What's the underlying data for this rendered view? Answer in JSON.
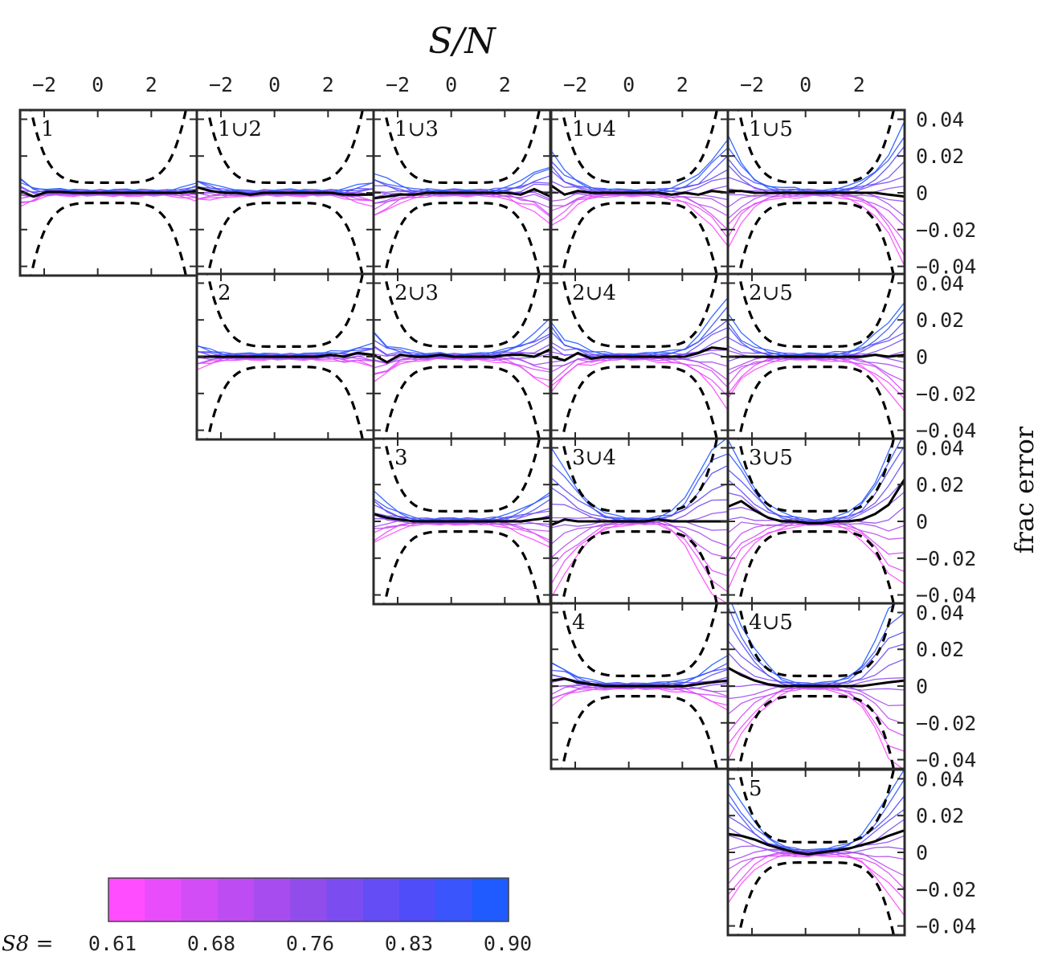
{
  "figure": {
    "x_axis_title": "S/N",
    "y_axis_title": "frac error",
    "colorbar_prefix": "S8 =",
    "colorbar_tick_labels": [
      "0.61",
      "0.68",
      "0.76",
      "0.83",
      "0.90"
    ],
    "colorbar_colors": [
      "#ff4dff",
      "#e94dfb",
      "#d34df7",
      "#bd4df3",
      "#a74def",
      "#914deb",
      "#7b4df1",
      "#654df5",
      "#4f4df9",
      "#3955fb",
      "#1f5bff"
    ]
  },
  "chart_data": {
    "type": "line",
    "layout": "upper-triangular grid of 15 panels, 5 rows by 5 columns",
    "x_ticks": [
      -2,
      0,
      2
    ],
    "x_tick_labels": [
      "−2",
      "0",
      "2"
    ],
    "xlim": [
      -2.9,
      3.7
    ],
    "y_ticks": [
      0.04,
      0.02,
      0,
      -0.02,
      -0.04
    ],
    "y_tick_labels": [
      "0.04",
      "0.02",
      "0",
      "−0.02",
      "−0.04"
    ],
    "ylim": [
      -0.045,
      0.045
    ],
    "x_sample": [
      -2.9,
      -2.4,
      -1.9,
      -1.4,
      -0.9,
      -0.4,
      0.1,
      0.6,
      1.1,
      1.6,
      2.1,
      2.6,
      3.1,
      3.7
    ],
    "panels": [
      {
        "label": "1",
        "row": 0,
        "col": 0,
        "spread": [
          0.008,
          0.004,
          0.001,
          0.001,
          0.001,
          0.001,
          0.001,
          0.001,
          0.001,
          0.001,
          0.001,
          0.001,
          0.002,
          0.004
        ],
        "mean": [
          0.001,
          -0.002,
          0.0005,
          0.0005,
          0.0,
          0.0,
          0.0,
          0.0,
          0.0,
          0.0,
          0.0,
          0.0,
          0.0,
          0.001
        ]
      },
      {
        "label": "1∪2",
        "row": 0,
        "col": 1,
        "spread": [
          0.006,
          0.004,
          0.002,
          0.001,
          0.001,
          0.001,
          0.001,
          0.001,
          0.001,
          0.001,
          0.001,
          0.002,
          0.004,
          0.006
        ],
        "mean": [
          0.003,
          0.001,
          0.0,
          0.0,
          -0.001,
          0.0,
          0.0,
          0.0,
          0.0,
          0.0,
          0.0,
          -0.001,
          -0.001,
          -0.001
        ]
      },
      {
        "label": "1∪3",
        "row": 0,
        "col": 2,
        "spread": [
          0.012,
          0.008,
          0.004,
          0.002,
          0.002,
          0.001,
          0.001,
          0.001,
          0.001,
          0.002,
          0.003,
          0.006,
          0.01,
          0.016
        ],
        "mean": [
          -0.003,
          -0.002,
          -0.001,
          -0.001,
          0.0,
          0.0,
          0.0,
          0.0,
          0.0,
          0.0,
          0.0,
          -0.001,
          0.002,
          -0.002
        ]
      },
      {
        "label": "1∪4",
        "row": 0,
        "col": 3,
        "spread": [
          0.02,
          0.012,
          0.006,
          0.003,
          0.002,
          0.001,
          0.001,
          0.001,
          0.002,
          0.003,
          0.005,
          0.01,
          0.018,
          0.03
        ],
        "mean": [
          0.004,
          -0.001,
          0.001,
          0.0,
          0.0,
          0.0,
          0.0,
          0.0,
          0.0,
          -0.001,
          0.0,
          -0.001,
          0.001,
          0.0
        ]
      },
      {
        "label": "1∪5",
        "row": 0,
        "col": 4,
        "spread": [
          0.03,
          0.016,
          0.008,
          0.004,
          0.002,
          0.002,
          0.001,
          0.001,
          0.002,
          0.003,
          0.006,
          0.012,
          0.022,
          0.04
        ],
        "mean": [
          0.001,
          0.001,
          0.0,
          0.0,
          0.0,
          0.0,
          0.0,
          0.0,
          0.0,
          0.0,
          0.0,
          0.0,
          -0.001,
          -0.002
        ]
      },
      {
        "label": "2",
        "row": 1,
        "col": 1,
        "spread": [
          0.006,
          0.004,
          0.002,
          0.001,
          0.001,
          0.001,
          0.001,
          0.001,
          0.001,
          0.001,
          0.002,
          0.003,
          0.004,
          0.006
        ],
        "mean": [
          0.0,
          0.0,
          0.0,
          0.0,
          0.0,
          0.0,
          0.0,
          0.0,
          0.0,
          0.0,
          0.001,
          0.0,
          0.002,
          0.001
        ]
      },
      {
        "label": "2∪3",
        "row": 1,
        "col": 2,
        "spread": [
          0.014,
          0.008,
          0.004,
          0.002,
          0.001,
          0.001,
          0.001,
          0.001,
          0.001,
          0.002,
          0.004,
          0.007,
          0.012,
          0.018
        ],
        "mean": [
          0.001,
          -0.003,
          0.001,
          0.0,
          0.0,
          0.001,
          0.0,
          0.0,
          0.0,
          0.0,
          0.001,
          0.001,
          0.0,
          0.004
        ]
      },
      {
        "label": "2∪4",
        "row": 1,
        "col": 3,
        "spread": [
          0.02,
          0.01,
          0.005,
          0.003,
          0.002,
          0.001,
          0.001,
          0.001,
          0.002,
          0.003,
          0.005,
          0.01,
          0.018,
          0.03
        ],
        "mean": [
          0.0,
          -0.002,
          0.002,
          -0.001,
          0.0,
          0.0,
          0.0,
          0.0,
          0.0,
          0.0,
          0.0,
          0.002,
          0.005,
          0.004
        ]
      },
      {
        "label": "2∪5",
        "row": 1,
        "col": 4,
        "spread": [
          0.024,
          0.012,
          0.006,
          0.003,
          0.002,
          0.001,
          0.001,
          0.001,
          0.002,
          0.003,
          0.006,
          0.011,
          0.018,
          0.03
        ],
        "mean": [
          0.0,
          0.0,
          0.0,
          0.0,
          0.0,
          0.0,
          0.0,
          0.0,
          0.0,
          0.0,
          0.0,
          0.001,
          0.0,
          0.001
        ]
      },
      {
        "label": "3",
        "row": 2,
        "col": 2,
        "spread": [
          0.014,
          0.008,
          0.004,
          0.002,
          0.001,
          0.001,
          0.001,
          0.001,
          0.001,
          0.002,
          0.003,
          0.006,
          0.01,
          0.016
        ],
        "mean": [
          0.004,
          0.002,
          0.001,
          0.0,
          0.0,
          0.0,
          0.0,
          0.0,
          0.0,
          0.0,
          0.0,
          0.0,
          0.001,
          0.002
        ]
      },
      {
        "label": "3∪4",
        "row": 2,
        "col": 3,
        "spread": [
          0.04,
          0.028,
          0.018,
          0.01,
          0.004,
          0.002,
          0.001,
          0.001,
          0.002,
          0.005,
          0.012,
          0.026,
          0.04,
          0.046
        ],
        "mean": [
          -0.002,
          0.001,
          0.0,
          0.0,
          0.0,
          0.0,
          0.0,
          0.0,
          0.001,
          0.0,
          0.0,
          0.0,
          0.0,
          0.0
        ]
      },
      {
        "label": "3∪5",
        "row": 2,
        "col": 4,
        "spread": [
          0.04,
          0.026,
          0.016,
          0.008,
          0.004,
          0.002,
          0.001,
          0.001,
          0.002,
          0.004,
          0.01,
          0.02,
          0.034,
          0.046
        ],
        "mean": [
          0.008,
          0.011,
          0.006,
          0.002,
          0.0,
          0.0,
          -0.001,
          -0.001,
          0.0,
          0.0,
          0.001,
          0.004,
          0.009,
          0.023
        ]
      },
      {
        "label": "4",
        "row": 3,
        "col": 3,
        "spread": [
          0.012,
          0.008,
          0.004,
          0.002,
          0.001,
          0.001,
          0.001,
          0.001,
          0.001,
          0.002,
          0.003,
          0.006,
          0.01,
          0.014
        ],
        "mean": [
          0.003,
          0.004,
          0.002,
          0.001,
          0.0,
          0.0,
          0.0,
          0.0,
          0.0,
          0.0,
          0.0,
          0.001,
          0.002,
          0.003
        ]
      },
      {
        "label": "4∪5",
        "row": 3,
        "col": 4,
        "spread": [
          0.046,
          0.03,
          0.018,
          0.01,
          0.004,
          0.002,
          0.001,
          0.001,
          0.002,
          0.005,
          0.012,
          0.024,
          0.04,
          0.046
        ],
        "mean": [
          0.01,
          0.006,
          0.003,
          0.001,
          0.0,
          0.0,
          0.0,
          0.0,
          0.0,
          0.0,
          0.0,
          0.001,
          0.002,
          0.003
        ]
      },
      {
        "label": "5",
        "row": 4,
        "col": 4,
        "spread": [
          0.034,
          0.022,
          0.012,
          0.006,
          0.003,
          0.002,
          0.001,
          0.001,
          0.002,
          0.004,
          0.008,
          0.016,
          0.026,
          0.04
        ],
        "mean": [
          0.01,
          0.009,
          0.007,
          0.004,
          0.002,
          0.0,
          -0.001,
          0.0,
          0.001,
          0.002,
          0.004,
          0.006,
          0.009,
          0.012
        ]
      }
    ]
  }
}
